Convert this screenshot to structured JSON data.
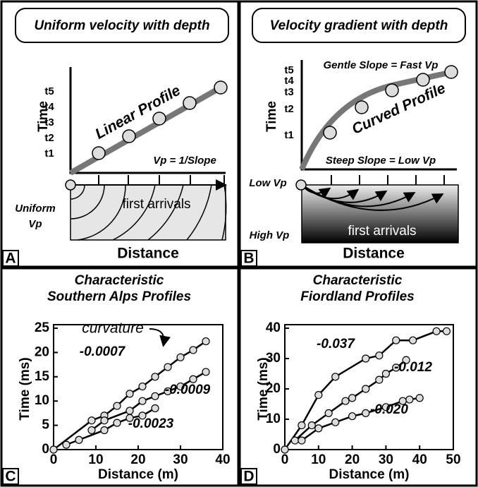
{
  "panels": {
    "A": {
      "letter": "A",
      "title": "Uniform velocity with depth",
      "y_label": "Time",
      "ticks": [
        "t5",
        "t4",
        "t3",
        "t2",
        "t1"
      ],
      "profile": "Linear Profile",
      "equation": "Vp = 1/Slope",
      "medium": [
        "Uniform",
        "Vp"
      ],
      "arrivals": "first arrivals",
      "x_label": "Distance"
    },
    "B": {
      "letter": "B",
      "title": "Velocity gradient with depth",
      "y_label": "Time",
      "ticks": [
        "t5",
        "t4",
        "t3",
        "t2",
        "t1"
      ],
      "gentle": "Gentle Slope = Fast Vp",
      "profile": "Curved Profile",
      "steep": "Steep Slope = Low Vp",
      "low": "Low Vp",
      "high": "High Vp",
      "arrivals": "first arrivals",
      "x_label": "Distance"
    }
  },
  "chart_data": [
    {
      "type": "scatter",
      "letter": "C",
      "title": [
        "Characteristic",
        "Southern Alps Profiles"
      ],
      "x_label": "Distance (m)",
      "y_label": "Time (ms)",
      "annotation": "curvature",
      "xlim": [
        0,
        40
      ],
      "xticks": [
        0,
        10,
        20,
        30,
        40
      ],
      "ylim": [
        0,
        25
      ],
      "yticks": [
        0,
        5,
        10,
        15,
        20,
        25
      ],
      "series": [
        {
          "name": "-0.0007",
          "color": "#dddddd",
          "x": [
            0,
            9,
            12,
            15,
            18,
            21,
            24,
            27,
            30,
            33,
            36
          ],
          "values": [
            0,
            6,
            7,
            9,
            11.5,
            13,
            15,
            17,
            19,
            20.5,
            22.3
          ]
        },
        {
          "name": "-0.0009",
          "color": "#dddddd",
          "x": [
            9,
            12,
            18,
            21,
            24,
            27,
            30,
            33,
            36
          ],
          "values": [
            4,
            6,
            8,
            10,
            11,
            12,
            13,
            14.5,
            16
          ]
        },
        {
          "name": "-0.0023",
          "color": "#dddddd",
          "x": [
            3,
            6,
            12,
            15,
            18,
            21,
            24
          ],
          "values": [
            1,
            2,
            4,
            5.5,
            6.5,
            7,
            8.5
          ]
        }
      ]
    },
    {
      "type": "scatter",
      "letter": "D",
      "title": [
        "Characteristic",
        "Fiordland Profiles"
      ],
      "x_label": "Distance (m)",
      "y_label": "Time (ms)",
      "xlim": [
        0,
        50
      ],
      "xticks": [
        0,
        10,
        20,
        30,
        40,
        50
      ],
      "ylim": [
        0,
        40
      ],
      "yticks": [
        0,
        10,
        20,
        30,
        40
      ],
      "series": [
        {
          "name": "-0.037",
          "color": "#dddddd",
          "x": [
            0,
            5,
            10,
            15,
            24,
            28,
            33,
            38,
            45,
            48
          ],
          "values": [
            0,
            8,
            18,
            24,
            30,
            31,
            36,
            36,
            39,
            39
          ]
        },
        {
          "name": "-0.012",
          "color": "#dddddd",
          "x": [
            3,
            8,
            13,
            18,
            20,
            24,
            28,
            30,
            33,
            36
          ],
          "values": [
            3,
            8,
            12,
            16,
            17,
            20,
            23,
            25,
            27,
            29.5
          ]
        },
        {
          "name": "-0.020",
          "color": "#dddddd",
          "x": [
            5,
            10,
            15,
            20,
            24,
            30,
            35,
            37,
            40
          ],
          "values": [
            3,
            7,
            9,
            11,
            12,
            14,
            16,
            16.5,
            17
          ]
        }
      ]
    }
  ]
}
